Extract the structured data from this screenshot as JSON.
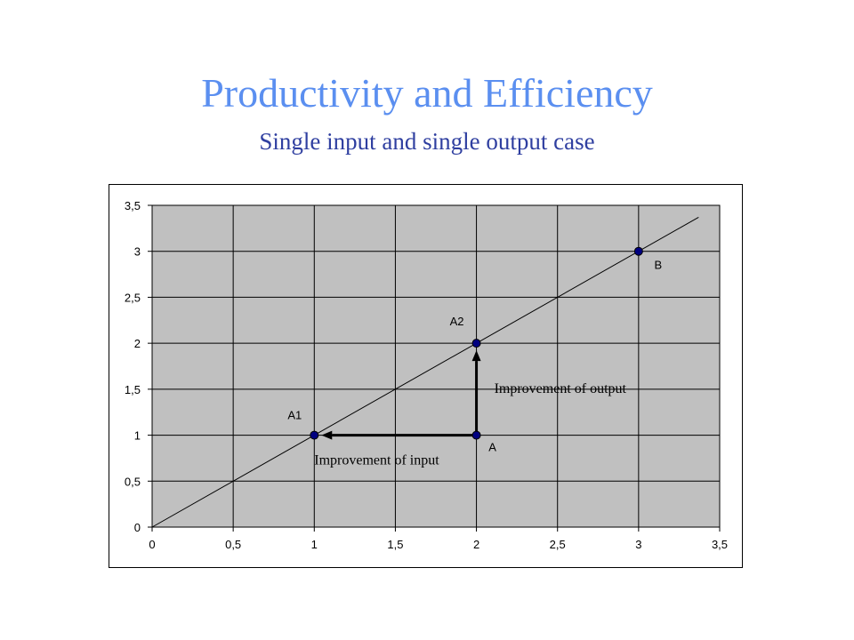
{
  "slide": {
    "title": "Productivity and Efficiency",
    "subtitle": "Single input and single output case"
  },
  "colors": {
    "title": "#5b8ff0",
    "subtitle": "#2f3fa0",
    "plot_background": "#c0c0c0",
    "point_fill": "#000080",
    "grid": "#000000"
  },
  "chart_data": {
    "type": "scatter",
    "title": "",
    "xlabel": "",
    "ylabel": "",
    "xlim": [
      0,
      3.5
    ],
    "ylim": [
      0,
      3.5
    ],
    "x_ticks": [
      "0",
      "0,5",
      "1",
      "1,5",
      "2",
      "2,5",
      "3",
      "3,5"
    ],
    "y_ticks": [
      "0",
      "0,5",
      "1",
      "1,5",
      "2",
      "2,5",
      "3",
      "3,5"
    ],
    "grid": true,
    "frontier_line": {
      "from": [
        0,
        0
      ],
      "to": [
        3.37,
        3.37
      ]
    },
    "points": [
      {
        "label": "A1",
        "x": 1,
        "y": 1
      },
      {
        "label": "A",
        "x": 2,
        "y": 1
      },
      {
        "label": "A2",
        "x": 2,
        "y": 2
      },
      {
        "label": "B",
        "x": 3,
        "y": 3
      }
    ],
    "arrows": [
      {
        "from": [
          2,
          1
        ],
        "to": [
          1,
          1
        ],
        "label": "Improvement of input"
      },
      {
        "from": [
          2,
          1
        ],
        "to": [
          2,
          2
        ],
        "label": "Improvement of output"
      }
    ]
  }
}
